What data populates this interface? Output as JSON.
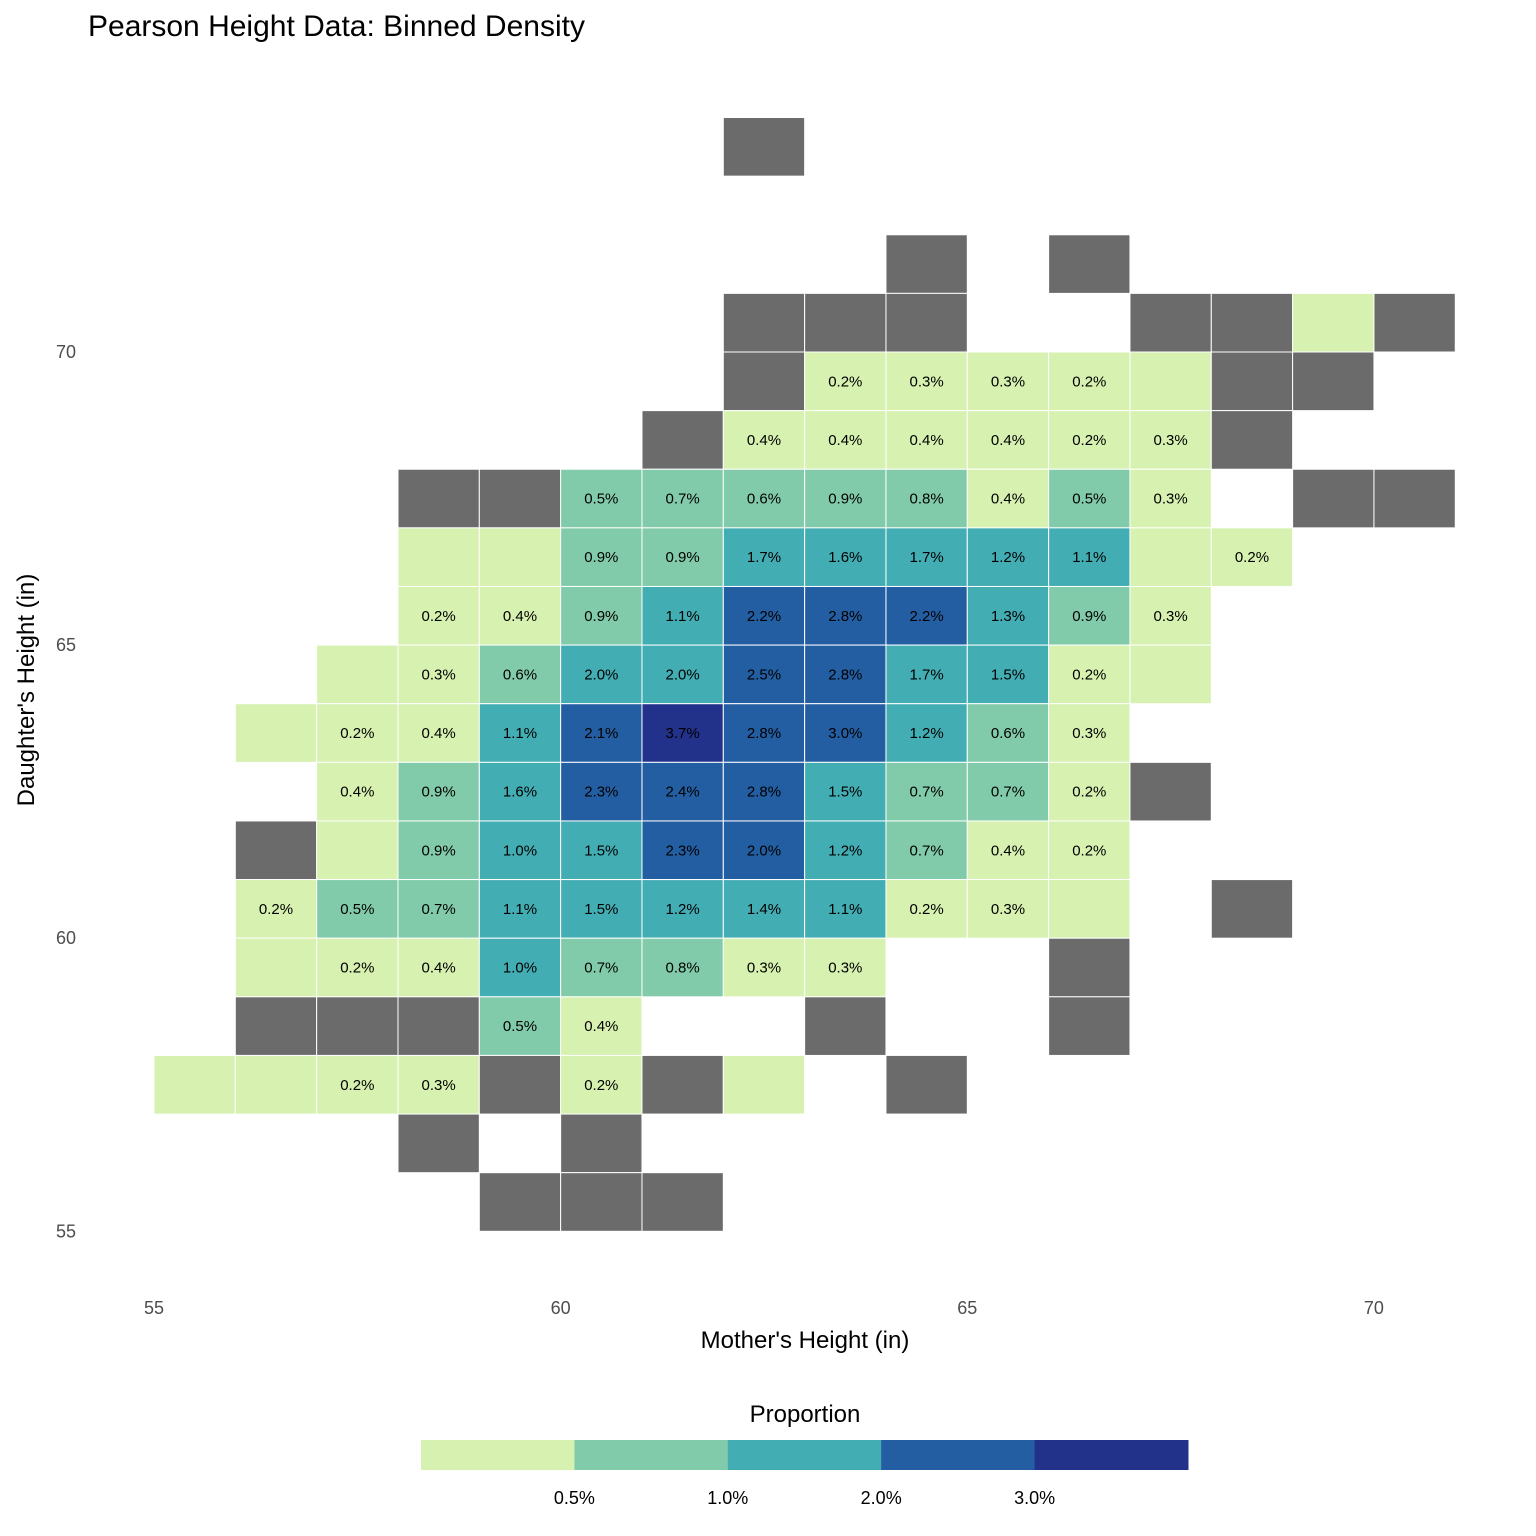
{
  "chart_data": {
    "type": "heatmap",
    "title": "Pearson Height Data: Binned Density",
    "xlabel": "Mother's Height (in)",
    "ylabel": "Daughter's Height (in)",
    "xlim": [
      54,
      72
    ],
    "ylim": [
      54,
      75
    ],
    "xticks": [
      55,
      60,
      65,
      70
    ],
    "yticks": [
      55,
      60,
      65,
      70
    ],
    "bin_width": 1,
    "grid": false,
    "na_color": "#6b6b6b",
    "legend": {
      "title": "Proportion",
      "placement": "bottom",
      "colors": [
        "#d6f1b0",
        "#82cbaa",
        "#43adb4",
        "#245ea2",
        "#22318a"
      ],
      "breaks": [
        "0.5%",
        "1.0%",
        "2.0%",
        "3.0%"
      ]
    },
    "cells_columns": [
      "mother",
      "daughter",
      "label",
      "bin"
    ],
    "cells": [
      [
        62,
        73,
        "",
        null
      ],
      [
        64,
        71,
        "",
        null
      ],
      [
        66,
        71,
        "",
        null
      ],
      [
        62,
        70,
        "",
        null
      ],
      [
        63,
        70,
        "",
        null
      ],
      [
        64,
        70,
        "",
        null
      ],
      [
        67,
        70,
        "",
        null
      ],
      [
        68,
        70,
        "",
        null
      ],
      [
        69,
        70,
        "",
        0
      ],
      [
        70,
        70,
        "",
        null
      ],
      [
        62,
        69,
        "",
        null
      ],
      [
        63,
        69,
        "0.2%",
        0
      ],
      [
        64,
        69,
        "0.3%",
        0
      ],
      [
        65,
        69,
        "0.3%",
        0
      ],
      [
        66,
        69,
        "0.2%",
        0
      ],
      [
        67,
        69,
        "",
        0
      ],
      [
        68,
        69,
        "",
        null
      ],
      [
        69,
        69,
        "",
        null
      ],
      [
        61,
        68,
        "",
        null
      ],
      [
        62,
        68,
        "0.4%",
        0
      ],
      [
        63,
        68,
        "0.4%",
        0
      ],
      [
        64,
        68,
        "0.4%",
        0
      ],
      [
        65,
        68,
        "0.4%",
        0
      ],
      [
        66,
        68,
        "0.2%",
        0
      ],
      [
        67,
        68,
        "0.3%",
        0
      ],
      [
        68,
        68,
        "",
        null
      ],
      [
        58,
        67,
        "",
        null
      ],
      [
        59,
        67,
        "",
        null
      ],
      [
        60,
        67,
        "0.5%",
        1
      ],
      [
        61,
        67,
        "0.7%",
        1
      ],
      [
        62,
        67,
        "0.6%",
        1
      ],
      [
        63,
        67,
        "0.9%",
        1
      ],
      [
        64,
        67,
        "0.8%",
        1
      ],
      [
        65,
        67,
        "0.4%",
        0
      ],
      [
        66,
        67,
        "0.5%",
        1
      ],
      [
        67,
        67,
        "0.3%",
        0
      ],
      [
        69,
        67,
        "",
        null
      ],
      [
        70,
        67,
        "",
        null
      ],
      [
        58,
        66,
        "",
        0
      ],
      [
        59,
        66,
        "",
        0
      ],
      [
        60,
        66,
        "0.9%",
        1
      ],
      [
        61,
        66,
        "0.9%",
        1
      ],
      [
        62,
        66,
        "1.7%",
        2
      ],
      [
        63,
        66,
        "1.6%",
        2
      ],
      [
        64,
        66,
        "1.7%",
        2
      ],
      [
        65,
        66,
        "1.2%",
        2
      ],
      [
        66,
        66,
        "1.1%",
        2
      ],
      [
        67,
        66,
        "",
        0
      ],
      [
        68,
        66,
        "0.2%",
        0
      ],
      [
        58,
        65,
        "0.2%",
        0
      ],
      [
        59,
        65,
        "0.4%",
        0
      ],
      [
        60,
        65,
        "0.9%",
        1
      ],
      [
        61,
        65,
        "1.1%",
        2
      ],
      [
        62,
        65,
        "2.2%",
        3
      ],
      [
        63,
        65,
        "2.8%",
        3
      ],
      [
        64,
        65,
        "2.2%",
        3
      ],
      [
        65,
        65,
        "1.3%",
        2
      ],
      [
        66,
        65,
        "0.9%",
        1
      ],
      [
        67,
        65,
        "0.3%",
        0
      ],
      [
        57,
        64,
        "",
        0
      ],
      [
        58,
        64,
        "0.3%",
        0
      ],
      [
        59,
        64,
        "0.6%",
        1
      ],
      [
        60,
        64,
        "2.0%",
        2
      ],
      [
        61,
        64,
        "2.0%",
        2
      ],
      [
        62,
        64,
        "2.5%",
        3
      ],
      [
        63,
        64,
        "2.8%",
        3
      ],
      [
        64,
        64,
        "1.7%",
        2
      ],
      [
        65,
        64,
        "1.5%",
        2
      ],
      [
        66,
        64,
        "0.2%",
        0
      ],
      [
        67,
        64,
        "",
        0
      ],
      [
        56,
        63,
        "",
        0
      ],
      [
        57,
        63,
        "0.2%",
        0
      ],
      [
        58,
        63,
        "0.4%",
        0
      ],
      [
        59,
        63,
        "1.1%",
        2
      ],
      [
        60,
        63,
        "2.1%",
        3
      ],
      [
        61,
        63,
        "3.7%",
        4
      ],
      [
        62,
        63,
        "2.8%",
        3
      ],
      [
        63,
        63,
        "3.0%",
        3
      ],
      [
        64,
        63,
        "1.2%",
        2
      ],
      [
        65,
        63,
        "0.6%",
        1
      ],
      [
        66,
        63,
        "0.3%",
        0
      ],
      [
        57,
        62,
        "0.4%",
        0
      ],
      [
        58,
        62,
        "0.9%",
        1
      ],
      [
        59,
        62,
        "1.6%",
        2
      ],
      [
        60,
        62,
        "2.3%",
        3
      ],
      [
        61,
        62,
        "2.4%",
        3
      ],
      [
        62,
        62,
        "2.8%",
        3
      ],
      [
        63,
        62,
        "1.5%",
        2
      ],
      [
        64,
        62,
        "0.7%",
        1
      ],
      [
        65,
        62,
        "0.7%",
        1
      ],
      [
        66,
        62,
        "0.2%",
        0
      ],
      [
        67,
        62,
        "",
        null
      ],
      [
        56,
        61,
        "",
        null
      ],
      [
        57,
        61,
        "",
        0
      ],
      [
        58,
        61,
        "0.9%",
        1
      ],
      [
        59,
        61,
        "1.0%",
        2
      ],
      [
        60,
        61,
        "1.5%",
        2
      ],
      [
        61,
        61,
        "2.3%",
        3
      ],
      [
        62,
        61,
        "2.0%",
        3
      ],
      [
        63,
        61,
        "1.2%",
        2
      ],
      [
        64,
        61,
        "0.7%",
        1
      ],
      [
        65,
        61,
        "0.4%",
        0
      ],
      [
        66,
        61,
        "0.2%",
        0
      ],
      [
        56,
        60,
        "0.2%",
        0
      ],
      [
        57,
        60,
        "0.5%",
        1
      ],
      [
        58,
        60,
        "0.7%",
        1
      ],
      [
        59,
        60,
        "1.1%",
        2
      ],
      [
        60,
        60,
        "1.5%",
        2
      ],
      [
        61,
        60,
        "1.2%",
        2
      ],
      [
        62,
        60,
        "1.4%",
        2
      ],
      [
        63,
        60,
        "1.1%",
        2
      ],
      [
        64,
        60,
        "0.2%",
        0
      ],
      [
        65,
        60,
        "0.3%",
        0
      ],
      [
        66,
        60,
        "",
        0
      ],
      [
        68,
        60,
        "",
        null
      ],
      [
        56,
        59,
        "",
        0
      ],
      [
        57,
        59,
        "0.2%",
        0
      ],
      [
        58,
        59,
        "0.4%",
        0
      ],
      [
        59,
        59,
        "1.0%",
        2
      ],
      [
        60,
        59,
        "0.7%",
        1
      ],
      [
        61,
        59,
        "0.8%",
        1
      ],
      [
        62,
        59,
        "0.3%",
        0
      ],
      [
        63,
        59,
        "0.3%",
        0
      ],
      [
        66,
        59,
        "",
        null
      ],
      [
        56,
        58,
        "",
        null
      ],
      [
        57,
        58,
        "",
        null
      ],
      [
        58,
        58,
        "",
        null
      ],
      [
        59,
        58,
        "0.5%",
        1
      ],
      [
        60,
        58,
        "0.4%",
        0
      ],
      [
        63,
        58,
        "",
        null
      ],
      [
        66,
        58,
        "",
        null
      ],
      [
        55,
        57,
        "",
        0
      ],
      [
        56,
        57,
        "",
        0
      ],
      [
        57,
        57,
        "0.2%",
        0
      ],
      [
        58,
        57,
        "0.3%",
        0
      ],
      [
        59,
        57,
        "",
        null
      ],
      [
        60,
        57,
        "0.2%",
        0
      ],
      [
        61,
        57,
        "",
        null
      ],
      [
        62,
        57,
        "",
        0
      ],
      [
        64,
        57,
        "",
        null
      ],
      [
        58,
        56,
        "",
        null
      ],
      [
        60,
        56,
        "",
        null
      ],
      [
        59,
        55,
        "",
        null
      ],
      [
        60,
        55,
        "",
        null
      ],
      [
        61,
        55,
        "",
        null
      ]
    ]
  }
}
